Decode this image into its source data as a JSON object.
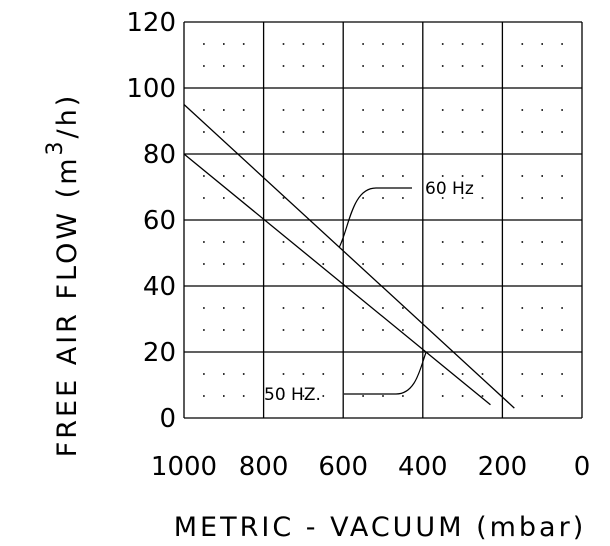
{
  "chart_data": {
    "type": "line",
    "xlabel": "METRIC - VACUUM (mbar)",
    "ylabel_prefix": "FREE AIR FLOW (m",
    "ylabel_superscript": "3",
    "ylabel_suffix": "/h)",
    "xlim": [
      1000,
      0
    ],
    "ylim": [
      0,
      120
    ],
    "x_ticks": [
      "1000",
      "800",
      "600",
      "400",
      "200",
      "0"
    ],
    "y_ticks": [
      "0",
      "20",
      "40",
      "60",
      "80",
      "100",
      "120"
    ],
    "grid": true,
    "minor_grid": "dotted",
    "series": [
      {
        "name": "60 Hz",
        "x": [
          1000,
          170
        ],
        "y": [
          95,
          3
        ]
      },
      {
        "name": "50 HZ.",
        "x": [
          1000,
          230
        ],
        "y": [
          80,
          4
        ]
      }
    ],
    "annotations": [
      {
        "text": "60 Hz",
        "series": 0
      },
      {
        "text": "50 HZ.",
        "series": 1
      }
    ]
  }
}
